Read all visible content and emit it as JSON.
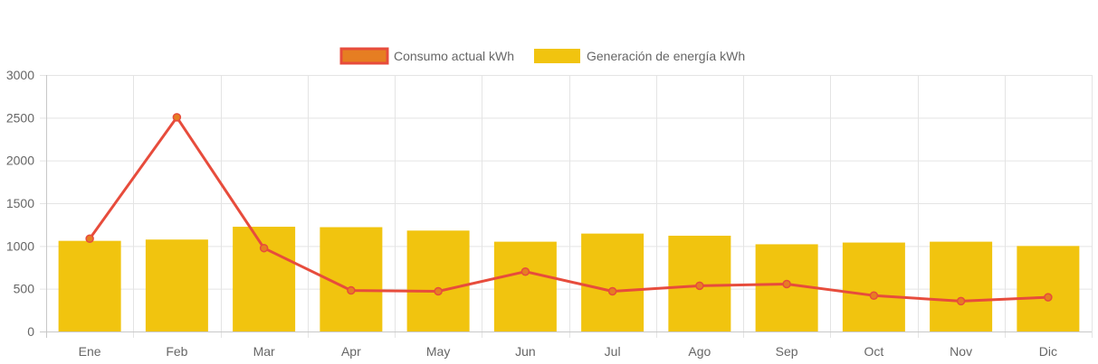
{
  "chart_data": {
    "type": "bar",
    "categories": [
      "Ene",
      "Feb",
      "Mar",
      "Apr",
      "May",
      "Jun",
      "Jul",
      "Ago",
      "Sep",
      "Oct",
      "Nov",
      "Dic"
    ],
    "series": [
      {
        "name": "Consumo actual kWh",
        "type": "line",
        "color": "#e74c3c",
        "fill_color": "#e67e22",
        "values": [
          1085,
          2505,
          975,
          480,
          470,
          700,
          470,
          535,
          555,
          420,
          355,
          400
        ]
      },
      {
        "name": "Generación de energía kWh",
        "type": "bar",
        "color": "#f1c40f",
        "values": [
          1060,
          1075,
          1225,
          1220,
          1180,
          1050,
          1145,
          1120,
          1020,
          1040,
          1050,
          1000
        ]
      }
    ],
    "title": "",
    "xlabel": "",
    "ylabel": "",
    "ylim": [
      0,
      3000
    ],
    "yticks": [
      "0",
      "500",
      "1000",
      "1500",
      "2000",
      "2500",
      "3000"
    ],
    "grid": true,
    "legend": "top-center"
  }
}
